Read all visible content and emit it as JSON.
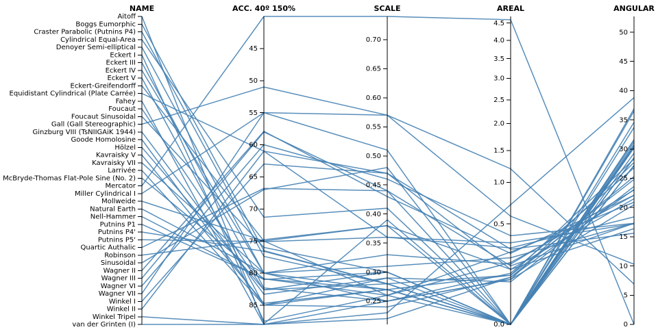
{
  "chart_data": {
    "type": "parallel-coordinates",
    "axes": [
      {
        "key": "name",
        "label": "NAME",
        "type": "categorical"
      },
      {
        "key": "acc",
        "label": "ACC. 40º 150%",
        "type": "linear",
        "domain": [
          88,
          40
        ],
        "ticks": [
          45,
          50,
          55,
          60,
          65,
          70,
          75,
          80,
          85
        ]
      },
      {
        "key": "scale",
        "label": "SCALE",
        "type": "linear",
        "domain": [
          0.21,
          0.74
        ],
        "ticks": [
          0.25,
          0.3,
          0.35,
          0.4,
          0.45,
          0.5,
          0.55,
          0.6,
          0.65,
          0.7
        ]
      },
      {
        "key": "areal",
        "label": "AREAL",
        "type": "sqrt",
        "domain": [
          0,
          4.7
        ],
        "ticks": [
          0.0,
          0.5,
          1.0,
          1.5,
          2.0,
          2.5,
          3.0,
          3.5,
          4.0,
          4.5
        ]
      },
      {
        "key": "angular",
        "label": "ANGULAR",
        "type": "linear",
        "domain": [
          0,
          52.7
        ],
        "ticks": [
          0,
          5,
          10,
          15,
          20,
          25,
          30,
          35,
          40,
          45,
          50
        ]
      }
    ],
    "rows": [
      {
        "name": "Aitoff",
        "acc": 87.9,
        "scale": 0.39,
        "areal": 0.0,
        "angular": 30.5
      },
      {
        "name": "Boggs Eumorphic",
        "acc": 76.5,
        "scale": 0.28,
        "areal": 0.0,
        "angular": 29.3
      },
      {
        "name": "Craster Parabolic (Putnins P4)",
        "acc": 77.4,
        "scale": 0.28,
        "areal": 0.0,
        "angular": 30.3
      },
      {
        "name": "Cylindrical Equal-Area",
        "acc": 71.3,
        "scale": 0.41,
        "areal": 0.0,
        "angular": 36.5
      },
      {
        "name": "Denoyer Semi-elliptical",
        "acc": 80.0,
        "scale": 0.33,
        "areal": 0.18,
        "angular": 23.0
      },
      {
        "name": "Eckert I",
        "acc": 87.5,
        "scale": 0.26,
        "areal": 0.19,
        "angular": 22.1
      },
      {
        "name": "Eckert III",
        "acc": 82.3,
        "scale": 0.25,
        "areal": 0.13,
        "angular": 26.8
      },
      {
        "name": "Eckert IV",
        "acc": 80.0,
        "scale": 0.27,
        "areal": 0.0,
        "angular": 27.2
      },
      {
        "name": "Eckert V",
        "acc": 85.0,
        "scale": 0.24,
        "areal": 0.11,
        "angular": 25.3
      },
      {
        "name": "Eckert-Greifendorff",
        "acc": 75.0,
        "scale": 0.38,
        "areal": 0.0,
        "angular": 31.6
      },
      {
        "name": "Equidistant Cylindrical (Plate Carrée)",
        "acc": 61.0,
        "scale": 0.36,
        "areal": 0.33,
        "angular": 17.2
      },
      {
        "name": "Fahey",
        "acc": 88.0,
        "scale": 0.22,
        "areal": 0.11,
        "angular": 23.1
      },
      {
        "name": "Foucaut",
        "acc": 82.6,
        "scale": 0.3,
        "areal": 0.0,
        "angular": 30.2
      },
      {
        "name": "Foucaut Sinusoidal",
        "acc": 76.0,
        "scale": 0.3,
        "areal": 0.0,
        "angular": 30.5
      },
      {
        "name": "Gall (Gall Stereographic)",
        "acc": 51.0,
        "scale": 0.57,
        "areal": 0.58,
        "angular": 10.3
      },
      {
        "name": "Ginzburg VIII (TsNIIGAiK 1944)",
        "acc": 83.3,
        "scale": 0.29,
        "areal": 0.09,
        "angular": 23.6
      },
      {
        "name": "Goode Homolosine",
        "acc": 85.0,
        "scale": 0.29,
        "areal": 0.0,
        "angular": 30.8
      },
      {
        "name": "Hölzel",
        "acc": 82.6,
        "scale": 0.28,
        "areal": 0.12,
        "angular": 24.8
      },
      {
        "name": "Kavraisky V",
        "acc": 84.7,
        "scale": 0.27,
        "areal": 0.0,
        "angular": 31.2
      },
      {
        "name": "Kavraisky VII",
        "acc": 80.0,
        "scale": 0.25,
        "areal": 0.1,
        "angular": 27.7
      },
      {
        "name": "Larrivée",
        "acc": 85.0,
        "scale": 0.27,
        "areal": 0.12,
        "angular": 28.3
      },
      {
        "name": "McBryde-Thomas Flat-Pole Sine (No. 2)",
        "acc": 80.9,
        "scale": 0.27,
        "areal": 0.0,
        "angular": 31.6
      },
      {
        "name": "Mercator",
        "acc": 40.0,
        "scale": 0.74,
        "areal": 4.6,
        "angular": 0.0
      },
      {
        "name": "Miller Cylindrical I",
        "acc": 55.0,
        "scale": 0.57,
        "areal": 1.2,
        "angular": 6.9
      },
      {
        "name": "Mollweide",
        "acc": 75.0,
        "scale": 0.26,
        "areal": 0.0,
        "angular": 33.7
      },
      {
        "name": "Natural Earth",
        "acc": 80.0,
        "scale": 0.31,
        "areal": 0.22,
        "angular": 17.3
      },
      {
        "name": "Nell-Hammer",
        "acc": 81.0,
        "scale": 0.3,
        "areal": 0.0,
        "angular": 36.9
      },
      {
        "name": "Putnins P1",
        "acc": 80.9,
        "scale": 0.26,
        "areal": 0.26,
        "angular": 20.9
      },
      {
        "name": "Putnins P4'",
        "acc": 76.6,
        "scale": 0.28,
        "areal": 0.0,
        "angular": 28.5
      },
      {
        "name": "Putnins P5'",
        "acc": 75.1,
        "scale": 0.36,
        "areal": 0.29,
        "angular": 18.4
      },
      {
        "name": "Quartic Authalic",
        "acc": 66.8,
        "scale": 0.44,
        "areal": 0.0,
        "angular": 28.5
      },
      {
        "name": "Robinson",
        "acc": 74.8,
        "scale": 0.38,
        "areal": 0.15,
        "angular": 21.5
      },
      {
        "name": "Sinusoidal",
        "acc": 67.0,
        "scale": 0.48,
        "areal": 0.0,
        "angular": 34.6
      },
      {
        "name": "Wagner II",
        "acc": 57.9,
        "scale": 0.43,
        "areal": 0.25,
        "angular": 22.1
      },
      {
        "name": "Wagner III",
        "acc": 58.0,
        "scale": 0.44,
        "areal": 0.17,
        "angular": 17.3
      },
      {
        "name": "Wagner VI",
        "acc": 60.0,
        "scale": 0.46,
        "areal": 0.39,
        "angular": 17.3
      },
      {
        "name": "Wagner VII",
        "acc": 55.0,
        "scale": 0.51,
        "areal": 0.0,
        "angular": 27.2
      },
      {
        "name": "Winkel I",
        "acc": 63.0,
        "scale": 0.47,
        "areal": 0.28,
        "angular": 15.6
      },
      {
        "name": "Winkel II",
        "acc": 61.0,
        "scale": 0.47,
        "areal": 0.15,
        "angular": 16.4
      },
      {
        "name": "Winkel Tripel",
        "acc": 88.0,
        "scale": 0.25,
        "areal": 0.1,
        "angular": 20.5
      },
      {
        "name": "van der Grinten (I)",
        "acc": 88.0,
        "scale": 0.23,
        "areal": 0.71,
        "angular": 38.8
      }
    ],
    "line_color": "#4682b4"
  }
}
